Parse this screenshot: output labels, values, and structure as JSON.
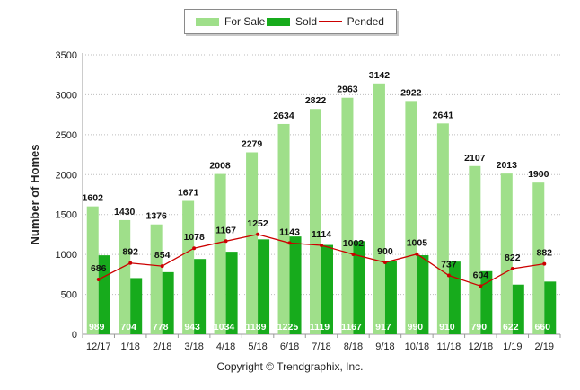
{
  "legend": {
    "for_sale": "For Sale",
    "sold": "Sold",
    "pended": "Pended"
  },
  "footer": "Copyright © Trendgraphix, Inc.",
  "colors": {
    "for_sale": "#9fdf8a",
    "sold": "#17ab1c",
    "pended": "#cc0000",
    "grid": "#bdbdbd",
    "axis": "#999999"
  },
  "chart_data": {
    "type": "bar",
    "ylabel": "Number of Homes",
    "xlabel": "",
    "ylim": [
      0,
      3500
    ],
    "yticks": [
      0,
      500,
      1000,
      1500,
      2000,
      2500,
      3000,
      3500
    ],
    "grid": true,
    "legend_position": "top-center",
    "categories": [
      "12/17",
      "1/18",
      "2/18",
      "3/18",
      "4/18",
      "5/18",
      "6/18",
      "7/18",
      "8/18",
      "9/18",
      "10/18",
      "11/18",
      "12/18",
      "1/19",
      "2/19"
    ],
    "series": [
      {
        "name": "For Sale",
        "type": "bar",
        "values": [
          1602,
          1430,
          1376,
          1671,
          2008,
          2279,
          2634,
          2822,
          2963,
          3142,
          2922,
          2641,
          2107,
          2013,
          1900
        ]
      },
      {
        "name": "Sold",
        "type": "bar",
        "values": [
          989,
          704,
          778,
          943,
          1034,
          1189,
          1225,
          1119,
          1167,
          917,
          990,
          910,
          790,
          622,
          660
        ]
      },
      {
        "name": "Pended",
        "type": "line",
        "values": [
          686,
          892,
          854,
          1078,
          1167,
          1252,
          1143,
          1114,
          1002,
          900,
          1005,
          737,
          604,
          822,
          882
        ]
      }
    ]
  }
}
